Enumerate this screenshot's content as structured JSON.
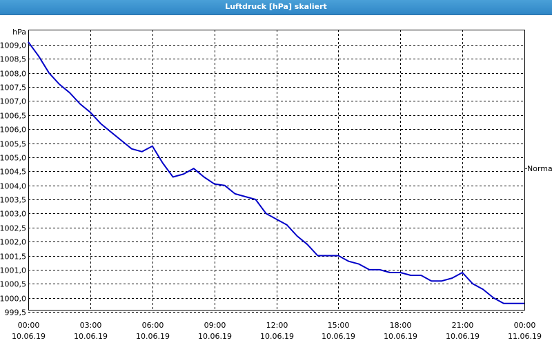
{
  "window": {
    "title": "Luftdruck [hPa] skaliert"
  },
  "chart_data": {
    "type": "line",
    "title": "Luftdruck [hPa] skaliert",
    "ylabel": "hPa",
    "ylim": [
      999.5,
      1009.0
    ],
    "y_ticks": [
      "1009,0",
      "1008,5",
      "1008,0",
      "1007,5",
      "1007,0",
      "1006,5",
      "1006,0",
      "1005,5",
      "1005,0",
      "1004,5",
      "1004,0",
      "1003,5",
      "1003,0",
      "1002,5",
      "1002,0",
      "1001,5",
      "1001,0",
      "1000,5",
      "1000,0",
      "999,5"
    ],
    "y_tick_values": [
      1009.0,
      1008.5,
      1008.0,
      1007.5,
      1007.0,
      1006.5,
      1006.0,
      1005.5,
      1005.0,
      1004.5,
      1004.0,
      1003.5,
      1003.0,
      1002.5,
      1002.0,
      1001.5,
      1001.0,
      1000.5,
      1000.0,
      999.5
    ],
    "x_ticks": [
      {
        "time": "00:00",
        "date": "10.06.19"
      },
      {
        "time": "03:00",
        "date": "10.06.19"
      },
      {
        "time": "06:00",
        "date": "10.06.19"
      },
      {
        "time": "09:00",
        "date": "10.06.19"
      },
      {
        "time": "12:00",
        "date": "10.06.19"
      },
      {
        "time": "15:00",
        "date": "10.06.19"
      },
      {
        "time": "18:00",
        "date": "10.06.19"
      },
      {
        "time": "21:00",
        "date": "10.06.19"
      },
      {
        "time": "00:00",
        "date": "11.06.19"
      }
    ],
    "reference_line": {
      "label": "Normal",
      "value": 1004.6
    },
    "grid": true,
    "line_color": "#0000c8",
    "series": [
      {
        "x_hours": [
          0,
          0.5,
          1,
          1.5,
          2,
          2.5,
          3,
          3.5,
          4,
          4.5,
          5,
          5.5,
          6,
          6.5,
          7,
          7.5,
          8,
          8.5,
          9,
          9.5,
          10,
          10.5,
          11,
          11.5,
          12,
          12.5,
          13,
          13.5,
          14,
          14.5,
          15,
          15.5,
          16,
          16.5,
          17,
          17.5,
          18,
          18.5,
          19,
          19.5,
          20,
          20.5,
          21,
          21.5,
          22,
          22.5,
          23,
          23.5,
          24
        ],
        "values": [
          1009.1,
          1008.6,
          1008.0,
          1007.6,
          1007.3,
          1006.9,
          1006.6,
          1006.2,
          1005.9,
          1005.6,
          1005.3,
          1005.2,
          1005.4,
          1004.8,
          1004.3,
          1004.4,
          1004.6,
          1004.3,
          1004.05,
          1004.0,
          1003.7,
          1003.6,
          1003.5,
          1003.0,
          1002.8,
          1002.6,
          1002.2,
          1001.9,
          1001.5,
          1001.5,
          1001.5,
          1001.3,
          1001.2,
          1001.0,
          1001.0,
          1000.9,
          1000.9,
          1000.8,
          1000.8,
          1000.6,
          1000.6,
          1000.7,
          1000.9,
          1000.5,
          1000.3,
          1000.0,
          999.8,
          999.8,
          999.8
        ]
      }
    ]
  }
}
